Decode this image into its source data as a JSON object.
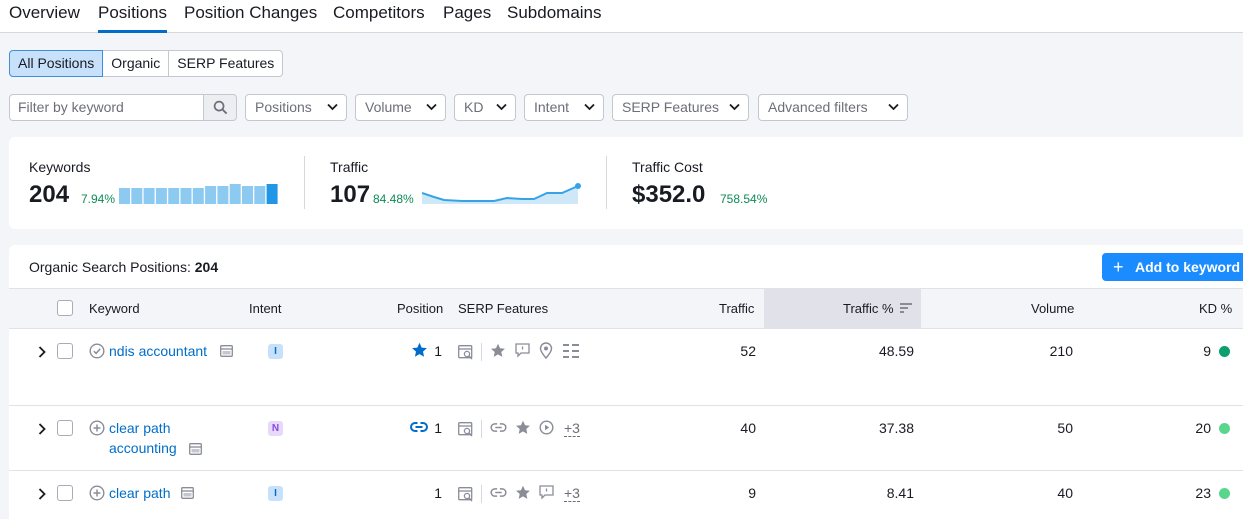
{
  "tabs": [
    "Overview",
    "Positions",
    "Position Changes",
    "Competitors",
    "Pages",
    "Subdomains"
  ],
  "segments": [
    "All Positions",
    "Organic",
    "SERP Features"
  ],
  "filter": {
    "placeholder": "Filter by keyword"
  },
  "dropdowns": [
    "Positions",
    "Volume",
    "KD",
    "Intent",
    "SERP Features",
    "Advanced filters"
  ],
  "kpis": {
    "keywords": {
      "label": "Keywords",
      "value": "204",
      "change": "7.94%",
      "bars": [
        0.8,
        0.8,
        0.8,
        0.8,
        0.8,
        0.8,
        0.8,
        0.9,
        0.9,
        1.0,
        0.9,
        0.9,
        1.0
      ]
    },
    "traffic": {
      "label": "Traffic",
      "value": "107",
      "change": "84.48%"
    },
    "cost": {
      "label": "Traffic Cost",
      "value": "$352.0",
      "change": "758.54%"
    }
  },
  "table": {
    "title": "Organic Search Positions:",
    "count": "204",
    "add_button": "Add to keyword",
    "columns": {
      "keyword": "Keyword",
      "intent": "Intent",
      "position": "Position",
      "serp": "SERP Features",
      "traffic": "Traffic",
      "traffic_pct": "Traffic %",
      "volume": "Volume",
      "kd": "KD %"
    },
    "rows": [
      {
        "kw1": "ndis accountant",
        "kw2": "",
        "intent": "I",
        "position": "1",
        "traffic": "52",
        "traffic_pct": "48.59",
        "volume": "210",
        "kd": "9",
        "kd_color": "#0e9f6e",
        "more": ""
      },
      {
        "kw1": "clear path",
        "kw2": "accounting",
        "intent": "N",
        "position": "1",
        "traffic": "40",
        "traffic_pct": "37.38",
        "volume": "50",
        "kd": "20",
        "kd_color": "#59d68e",
        "more": "+3"
      },
      {
        "kw1": "clear path",
        "kw2": "",
        "intent": "I",
        "position": "1",
        "traffic": "9",
        "traffic_pct": "8.41",
        "volume": "40",
        "kd": "23",
        "kd_color": "#59d68e",
        "more": "+3"
      }
    ]
  }
}
